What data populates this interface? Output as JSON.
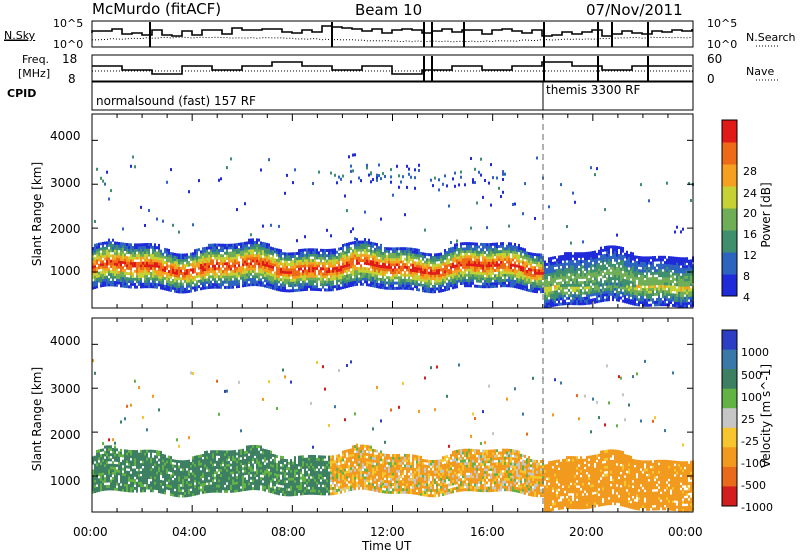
{
  "header": {
    "station": "McMurdo (fitACF)",
    "beam": "Beam 10",
    "date": "07/Nov/2011"
  },
  "top_panel": {
    "left_label": "N.Sky",
    "left_ticks": [
      "10^5",
      "10^0"
    ],
    "right_ticks": [
      "10^5",
      "10^0"
    ],
    "right_label": "N.Search"
  },
  "freq_panel": {
    "left_label_1": "Freq.",
    "left_label_2": "[MHz]",
    "left_ticks": [
      "18",
      "8"
    ],
    "right_ticks": [
      "60",
      "0"
    ],
    "right_label": "Nave"
  },
  "cpid": {
    "label": "CPID",
    "mode1": "normalsound (fast) 157 RF",
    "mode2": "themis 3300 RF"
  },
  "colors": {
    "power": [
      "#1f2bd8",
      "#2d64c0",
      "#3f8f6e",
      "#6fae56",
      "#c6d233",
      "#f6a020",
      "#ee6a16",
      "#e01919"
    ],
    "velocity": [
      "#2b3ec4",
      "#3a78a8",
      "#3d7f62",
      "#62b344",
      "#c6c6c6",
      "#f7c52d",
      "#f19a1e",
      "#e86a1a",
      "#d21e1e"
    ]
  },
  "chart_data": [
    {
      "type": "heatmap",
      "title": "",
      "xlabel": "Time UT",
      "ylabel": "Slant Range [km]",
      "xlim": [
        0,
        24
      ],
      "ylim": [
        180,
        4600
      ],
      "x_ticks": [
        "00:00",
        "04:00",
        "08:00",
        "12:00",
        "16:00",
        "20:00",
        "00:00"
      ],
      "y_ticks": [
        1000,
        2000,
        3000,
        4000
      ],
      "colorbar": {
        "label": "Power [dB]",
        "ticks": [
          4,
          8,
          12,
          16,
          20,
          24,
          28
        ],
        "range": [
          0,
          32
        ]
      },
      "echo_layers": [
        {
          "start_h": 0.0,
          "end_h": 18.0,
          "min_km": 600,
          "max_km": 1550,
          "peak_value": 30
        },
        {
          "start_h": 18.0,
          "end_h": 24.0,
          "min_km": 250,
          "max_km": 1400,
          "peak_value": 26
        },
        {
          "start_h": 9.5,
          "end_h": 16.5,
          "min_km": 2900,
          "max_km": 3500,
          "peak_value": 8
        }
      ]
    },
    {
      "type": "heatmap",
      "title": "",
      "xlabel": "Time UT",
      "ylabel": "Slant Range [km]",
      "xlim": [
        0,
        24
      ],
      "ylim": [
        180,
        4600
      ],
      "x_ticks": [
        "00:00",
        "04:00",
        "08:00",
        "12:00",
        "16:00",
        "20:00",
        "00:00"
      ],
      "y_ticks": [
        1000,
        2000,
        3000,
        4000
      ],
      "colorbar": {
        "label": "Velocity [m s^-1]",
        "ticks": [
          1000,
          500,
          100,
          25,
          -25,
          -100,
          -500,
          -1000
        ],
        "range": [
          -1200,
          1200
        ]
      },
      "echo_layers": [
        {
          "start_h": 0.0,
          "end_h": 9.5,
          "min_km": 600,
          "max_km": 1500,
          "mean_velocity": 110
        },
        {
          "start_h": 9.5,
          "end_h": 18.0,
          "min_km": 600,
          "max_km": 1500,
          "mean_velocity": -80
        },
        {
          "start_h": 18.0,
          "end_h": 24.0,
          "min_km": 250,
          "max_km": 1400,
          "mean_velocity": -150
        }
      ]
    }
  ]
}
